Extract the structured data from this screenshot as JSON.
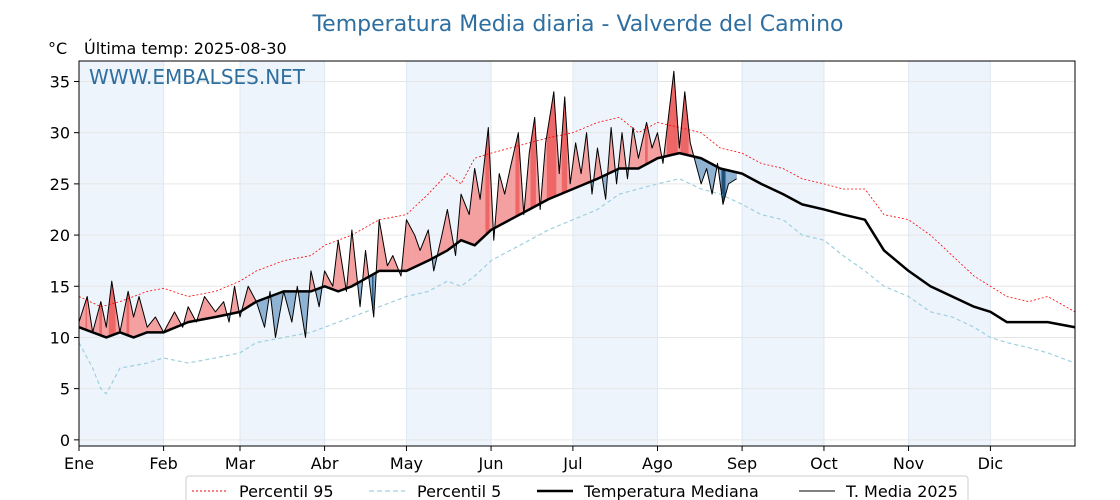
{
  "chart_data": {
    "type": "line",
    "title": "Temperatura Media diaria - Valverde del Camino",
    "unit": "°C",
    "subtitle": "Última temp: 2025-08-30",
    "watermark": "WWW.EMBALSES.NET",
    "ylim": [
      0,
      37
    ],
    "yticks": [
      0,
      5,
      10,
      15,
      20,
      25,
      30,
      35
    ],
    "xlim": [
      0,
      365
    ],
    "months": [
      {
        "label": "Ene",
        "day": 0
      },
      {
        "label": "Feb",
        "day": 31
      },
      {
        "label": "Mar",
        "day": 59
      },
      {
        "label": "Abr",
        "day": 90
      },
      {
        "label": "May",
        "day": 120
      },
      {
        "label": "Jun",
        "day": 151
      },
      {
        "label": "Jul",
        "day": 181
      },
      {
        "label": "Ago",
        "day": 212
      },
      {
        "label": "Sep",
        "day": 243
      },
      {
        "label": "Oct",
        "day": 273
      },
      {
        "label": "Nov",
        "day": 304
      },
      {
        "label": "Dic",
        "day": 334
      }
    ],
    "grid": true,
    "legend_position": "bottom",
    "colors": {
      "p95": "#ff0000",
      "p5": "#9ed0e0",
      "median": "#000000",
      "current": "#000000",
      "above_fill": "#f4a0a0",
      "above_strong": "#ee6666",
      "below_fill": "#8fb3d3",
      "below_strong": "#1f4f7a",
      "band": "#eef4fb"
    },
    "series": [
      {
        "key": "p95",
        "name": "Percentil 95",
        "x": [
          0,
          8,
          15,
          25,
          31,
          40,
          50,
          59,
          65,
          75,
          85,
          90,
          100,
          110,
          120,
          128,
          135,
          140,
          145,
          151,
          158,
          165,
          172,
          181,
          190,
          198,
          205,
          212,
          220,
          228,
          235,
          243,
          250,
          258,
          265,
          273,
          280,
          288,
          295,
          304,
          312,
          320,
          328,
          334,
          340,
          348,
          355,
          365
        ],
        "values": [
          14.0,
          13.0,
          13.5,
          14.5,
          14.8,
          14.0,
          14.5,
          15.5,
          16.5,
          17.5,
          18.0,
          19.0,
          20.0,
          21.5,
          22.0,
          24.0,
          26.0,
          25.0,
          27.5,
          28.0,
          28.5,
          29.0,
          29.5,
          30.0,
          31.0,
          31.5,
          30.0,
          31.0,
          30.5,
          30.0,
          28.5,
          28.0,
          27.0,
          26.5,
          25.5,
          25.0,
          24.5,
          24.5,
          22.0,
          21.5,
          20.0,
          18.0,
          16.0,
          15.0,
          14.0,
          13.5,
          14.0,
          12.5
        ]
      },
      {
        "key": "p5",
        "name": "Percentil 5",
        "x": [
          0,
          5,
          8,
          10,
          15,
          25,
          31,
          40,
          50,
          59,
          65,
          75,
          85,
          90,
          100,
          110,
          120,
          128,
          135,
          140,
          145,
          151,
          158,
          165,
          172,
          181,
          190,
          198,
          205,
          212,
          220,
          228,
          235,
          243,
          250,
          258,
          265,
          273,
          280,
          288,
          295,
          304,
          312,
          320,
          328,
          334,
          340,
          348,
          355,
          365
        ],
        "values": [
          9.5,
          7.0,
          5.0,
          4.5,
          7.0,
          7.5,
          8.0,
          7.5,
          8.0,
          8.5,
          9.5,
          10.0,
          10.5,
          11.0,
          12.0,
          13.0,
          14.0,
          14.5,
          15.5,
          15.0,
          16.0,
          17.5,
          18.5,
          19.5,
          20.5,
          21.5,
          22.5,
          24.0,
          24.5,
          25.0,
          25.5,
          24.5,
          24.0,
          23.0,
          22.0,
          21.5,
          20.0,
          19.5,
          18.0,
          16.5,
          15.0,
          14.0,
          12.5,
          12.0,
          11.0,
          10.0,
          9.5,
          9.0,
          8.5,
          7.5
        ]
      },
      {
        "key": "median",
        "name": "Temperatura Mediana",
        "x": [
          0,
          5,
          10,
          15,
          20,
          25,
          31,
          40,
          50,
          59,
          65,
          75,
          85,
          90,
          95,
          100,
          110,
          120,
          128,
          135,
          140,
          145,
          151,
          158,
          165,
          172,
          181,
          190,
          198,
          205,
          212,
          220,
          228,
          235,
          243,
          250,
          258,
          265,
          273,
          280,
          288,
          295,
          304,
          312,
          320,
          328,
          334,
          340,
          348,
          355,
          365
        ],
        "values": [
          11.0,
          10.5,
          10.0,
          10.5,
          10.0,
          10.5,
          10.5,
          11.5,
          12.0,
          12.5,
          13.5,
          14.5,
          14.5,
          15.0,
          14.5,
          15.0,
          16.5,
          16.5,
          17.5,
          18.5,
          19.5,
          19.0,
          20.5,
          21.5,
          22.5,
          23.5,
          24.5,
          25.5,
          26.5,
          26.5,
          27.5,
          28.0,
          27.5,
          26.5,
          26.0,
          25.0,
          24.0,
          23.0,
          22.5,
          22.0,
          21.5,
          18.5,
          16.5,
          15.0,
          14.0,
          13.0,
          12.5,
          11.5,
          11.5,
          11.5,
          11.0
        ]
      },
      {
        "key": "current",
        "name": "T. Media 2025",
        "x": [
          0,
          3,
          5,
          8,
          10,
          12,
          15,
          18,
          20,
          22,
          25,
          28,
          31,
          35,
          38,
          40,
          43,
          46,
          50,
          53,
          55,
          57,
          59,
          62,
          65,
          68,
          70,
          72,
          75,
          78,
          80,
          83,
          85,
          88,
          90,
          93,
          95,
          98,
          100,
          103,
          105,
          108,
          110,
          113,
          115,
          118,
          120,
          123,
          125,
          128,
          130,
          133,
          135,
          138,
          140,
          143,
          145,
          147,
          150,
          152,
          154,
          156,
          158,
          161,
          163,
          165,
          167,
          169,
          171,
          174,
          176,
          178,
          180,
          182,
          184,
          186,
          188,
          190,
          193,
          195,
          197,
          199,
          201,
          203,
          205,
          208,
          210,
          212,
          214,
          216,
          218,
          220,
          222,
          224,
          226,
          228,
          230,
          232,
          234,
          236,
          238,
          241
        ],
        "values": [
          11.5,
          14.0,
          10.5,
          13.5,
          11.0,
          15.5,
          10.5,
          14.5,
          12.0,
          14.0,
          11.0,
          12.0,
          10.5,
          12.5,
          11.0,
          13.0,
          11.5,
          14.0,
          12.5,
          13.5,
          11.5,
          15.0,
          12.0,
          15.0,
          13.5,
          11.0,
          14.5,
          10.0,
          14.5,
          11.5,
          15.0,
          10.0,
          16.5,
          13.0,
          16.5,
          15.0,
          19.5,
          14.5,
          20.5,
          13.0,
          18.5,
          12.0,
          21.5,
          17.0,
          18.0,
          16.0,
          21.5,
          20.0,
          18.5,
          20.5,
          16.5,
          20.0,
          22.5,
          18.0,
          24.0,
          22.0,
          26.5,
          23.5,
          30.5,
          19.5,
          26.0,
          24.0,
          26.5,
          30.0,
          22.0,
          28.0,
          31.5,
          22.5,
          29.0,
          34.0,
          26.0,
          33.5,
          25.0,
          29.0,
          26.0,
          30.0,
          24.0,
          28.5,
          23.5,
          30.5,
          25.0,
          30.0,
          25.5,
          30.5,
          27.5,
          31.0,
          28.5,
          30.0,
          27.0,
          31.5,
          36.0,
          28.5,
          34.0,
          29.0,
          27.0,
          25.0,
          26.5,
          24.0,
          27.0,
          23.0,
          25.0,
          25.5
        ]
      }
    ],
    "legend": [
      {
        "key": "p95",
        "label": "Percentil 95"
      },
      {
        "key": "p5",
        "label": "Percentil 5"
      },
      {
        "key": "median",
        "label": "Temperatura Mediana"
      },
      {
        "key": "current",
        "label": "T. Media 2025"
      }
    ]
  }
}
